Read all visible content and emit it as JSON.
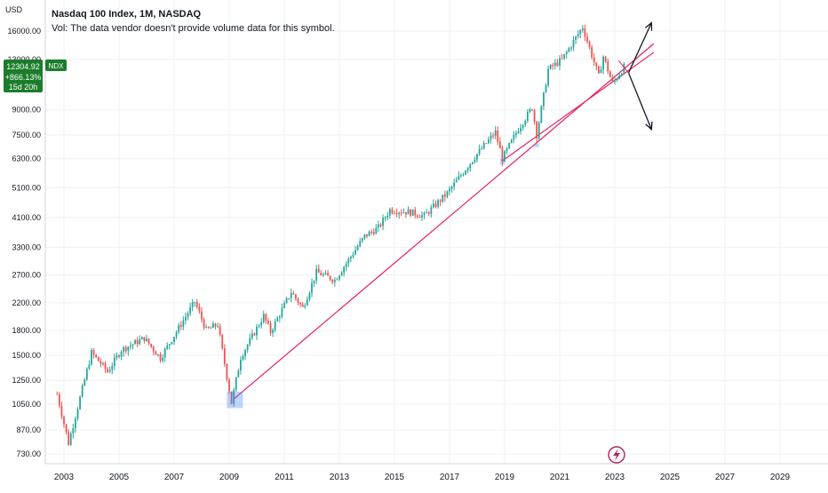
{
  "chart_data": {
    "type": "candlestick",
    "title": "Nasdaq 100 Index, 1M, NASDAQ",
    "subtitle": "Vol: The data vendor doesn't provide volume data for this symbol.",
    "currency": "USD",
    "scale": "log",
    "x_ticks": [
      "2003",
      "2005",
      "2007",
      "2009",
      "2011",
      "2013",
      "2015",
      "2017",
      "2019",
      "2021",
      "2023",
      "2025",
      "2027",
      "2029"
    ],
    "y_ticks": [
      730,
      870,
      1050,
      1250,
      1500,
      1800,
      2200,
      2700,
      3300,
      4100,
      5100,
      6300,
      7500,
      9000,
      13000,
      16000
    ],
    "y_tick_labels": [
      "730.00",
      "870.00",
      "1050.00",
      "1250.00",
      "1500.00",
      "1800.00",
      "2200.00",
      "2700.00",
      "3300.00",
      "4100.00",
      "5100.00",
      "6300.00",
      "7500.00",
      "9000.00",
      "13000.00",
      "16000.00"
    ],
    "price_path": [
      [
        "2002-10",
        1130
      ],
      [
        "2003-03",
        790
      ],
      [
        "2004-01",
        1530
      ],
      [
        "2004-08",
        1330
      ],
      [
        "2005-02",
        1560
      ],
      [
        "2005-12",
        1700
      ],
      [
        "2006-07",
        1470
      ],
      [
        "2007-10",
        2220
      ],
      [
        "2008-03",
        1800
      ],
      [
        "2008-08",
        1880
      ],
      [
        "2009-02",
        1060
      ],
      [
        "2009-06",
        1480
      ],
      [
        "2010-04",
        2000
      ],
      [
        "2010-07",
        1780
      ],
      [
        "2011-04",
        2380
      ],
      [
        "2011-09",
        2120
      ],
      [
        "2012-03",
        2750
      ],
      [
        "2012-11",
        2600
      ],
      [
        "2013-12",
        3580
      ],
      [
        "2014-06",
        3810
      ],
      [
        "2014-11",
        4340
      ],
      [
        "2015-08",
        4260
      ],
      [
        "2016-02",
        4150
      ],
      [
        "2016-12",
        4900
      ],
      [
        "2017-12",
        6390
      ],
      [
        "2018-09",
        7650
      ],
      [
        "2018-12",
        6300
      ],
      [
        "2019-07",
        7850
      ],
      [
        "2020-01",
        9150
      ],
      [
        "2020-03",
        7500
      ],
      [
        "2020-08",
        12100
      ],
      [
        "2021-02",
        13000
      ],
      [
        "2021-11",
        16500
      ],
      [
        "2022-06",
        11500
      ],
      [
        "2022-08",
        13300
      ],
      [
        "2022-12",
        10900
      ],
      [
        "2023-05",
        12304.92
      ]
    ],
    "last_price": {
      "value": "12304.92",
      "change": "+866.13%",
      "countdown": "15d 20h",
      "symbol": "NDX"
    },
    "trendlines": [
      {
        "from": [
          "2009-03",
          1090
        ],
        "to": [
          "2024-06",
          14600
        ],
        "color": "#e91e63"
      },
      {
        "from": [
          "2018-12",
          6200
        ],
        "to": [
          "2024-06",
          13700
        ],
        "color": "#e91e63"
      }
    ],
    "projection_arrows": [
      {
        "from": [
          "2023-07",
          11800
        ],
        "to": [
          "2024-05",
          17000
        ],
        "color": "#131722"
      },
      {
        "from": [
          "2023-07",
          11800
        ],
        "to": [
          "2024-05",
          7800
        ],
        "color": "#131722"
      }
    ],
    "highlight_boxes": [
      {
        "from": [
          "2008-12",
          1020
        ],
        "to": [
          "2009-07",
          1150
        ]
      },
      {
        "from": [
          "2018-11",
          6050
        ],
        "to": [
          "2019-01",
          6300
        ]
      },
      {
        "from": [
          "2020-02",
          6850
        ],
        "to": [
          "2020-04",
          7050
        ]
      }
    ],
    "colors": {
      "up": "#26a69a",
      "down": "#ef5350",
      "last_price_bg": "#1b7d2a",
      "grid": "#e9ecf1",
      "text": "#131722"
    }
  }
}
